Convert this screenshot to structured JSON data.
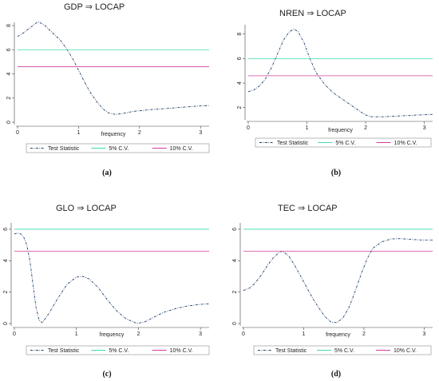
{
  "chart_data": [
    {
      "type": "line",
      "title": "GDP ⇒ LOCAP",
      "xlabel": "frequency",
      "ylabel": "",
      "caption": "(a)",
      "xlim": [
        0,
        3.14
      ],
      "ylim": [
        0,
        8
      ],
      "xticks": [
        "0",
        "1",
        "2",
        "3"
      ],
      "yticks": [
        "0",
        "2",
        "4",
        "6",
        "8"
      ],
      "legend_position": "bottom",
      "series": [
        {
          "name": "Test Statistic",
          "color": "#1f3f6b",
          "dash": "dash-dot",
          "x": [
            0,
            0.1,
            0.2,
            0.3,
            0.35,
            0.45,
            0.55,
            0.7,
            0.8,
            0.9,
            1.0,
            1.1,
            1.2,
            1.3,
            1.4,
            1.5,
            1.6,
            1.7,
            1.8,
            1.9,
            2.0,
            2.2,
            2.4,
            2.6,
            2.8,
            3.0,
            3.14
          ],
          "y": [
            7.1,
            7.4,
            7.8,
            8.2,
            8.3,
            8.0,
            7.5,
            6.8,
            6.1,
            5.3,
            4.3,
            3.3,
            2.4,
            1.7,
            1.1,
            0.75,
            0.65,
            0.7,
            0.8,
            0.9,
            0.95,
            1.05,
            1.12,
            1.2,
            1.28,
            1.35,
            1.38
          ]
        },
        {
          "name": "5% C.V.",
          "color": "#3fd9b2",
          "dash": "solid",
          "x": [
            0,
            3.14
          ],
          "y": [
            6.0,
            6.0
          ]
        },
        {
          "name": "10% C.V.",
          "color": "#d0409a",
          "dash": "solid",
          "x": [
            0,
            3.14
          ],
          "y": [
            4.6,
            4.6
          ]
        }
      ]
    },
    {
      "type": "line",
      "title": "NREN ⇒ LOCAP",
      "xlabel": "frequency",
      "ylabel": "",
      "caption": "(b)",
      "xlim": [
        0,
        3.14
      ],
      "ylim": [
        1.2,
        8.5
      ],
      "xticks": [
        "0",
        "1",
        "2",
        "3"
      ],
      "yticks": [
        "2",
        "4",
        "6",
        "8"
      ],
      "legend_position": "bottom",
      "series": [
        {
          "name": "Test Statistic",
          "color": "#1f3f6b",
          "dash": "dash-dot",
          "x": [
            0,
            0.1,
            0.2,
            0.3,
            0.4,
            0.5,
            0.6,
            0.7,
            0.78,
            0.85,
            0.95,
            1.05,
            1.15,
            1.3,
            1.45,
            1.6,
            1.75,
            1.9,
            2.0,
            2.1,
            2.3,
            2.5,
            2.7,
            2.9,
            3.14
          ],
          "y": [
            3.3,
            3.45,
            3.8,
            4.4,
            5.3,
            6.4,
            7.5,
            8.2,
            8.4,
            8.2,
            7.3,
            6.0,
            4.9,
            3.9,
            3.2,
            2.7,
            2.2,
            1.7,
            1.4,
            1.25,
            1.25,
            1.3,
            1.35,
            1.4,
            1.45
          ]
        },
        {
          "name": "5% C.V.",
          "color": "#3fd9b2",
          "dash": "solid",
          "x": [
            0,
            3.14
          ],
          "y": [
            6.0,
            6.0
          ]
        },
        {
          "name": "10% C.V.",
          "color": "#d0409a",
          "dash": "solid",
          "x": [
            0,
            3.14
          ],
          "y": [
            4.6,
            4.6
          ]
        }
      ]
    },
    {
      "type": "line",
      "title": "GLO ⇒ LOCAP",
      "xlabel": "frequency",
      "ylabel": "",
      "caption": "(c)",
      "xlim": [
        0,
        3.14
      ],
      "ylim": [
        0,
        6.2
      ],
      "xticks": [
        "0",
        "1",
        "2",
        "3"
      ],
      "yticks": [
        "0",
        "2",
        "4",
        "6"
      ],
      "legend_position": "bottom",
      "series": [
        {
          "name": "Test Statistic",
          "color": "#1f3f6b",
          "dash": "dash-dot",
          "x": [
            0,
            0.05,
            0.1,
            0.15,
            0.2,
            0.25,
            0.3,
            0.35,
            0.4,
            0.45,
            0.55,
            0.7,
            0.85,
            1.0,
            1.1,
            1.2,
            1.35,
            1.5,
            1.65,
            1.8,
            1.95,
            2.0,
            2.1,
            2.25,
            2.4,
            2.6,
            2.8,
            3.0,
            3.14
          ],
          "y": [
            5.7,
            5.75,
            5.7,
            5.5,
            5.0,
            4.0,
            2.5,
            1.0,
            0.2,
            0.05,
            0.6,
            1.6,
            2.5,
            2.95,
            3.0,
            2.85,
            2.3,
            1.5,
            0.8,
            0.3,
            0.05,
            0.02,
            0.1,
            0.4,
            0.7,
            0.95,
            1.12,
            1.22,
            1.25
          ]
        },
        {
          "name": "5% C.V.",
          "color": "#3fd9b2",
          "dash": "solid",
          "x": [
            0,
            3.14
          ],
          "y": [
            6.0,
            6.0
          ]
        },
        {
          "name": "10% C.V.",
          "color": "#d0409a",
          "dash": "solid",
          "x": [
            0,
            3.14
          ],
          "y": [
            4.6,
            4.6
          ]
        }
      ]
    },
    {
      "type": "line",
      "title": "TEC ⇒ LOCAP",
      "xlabel": "frequency",
      "ylabel": "",
      "caption": "(d)",
      "xlim": [
        0,
        3.14
      ],
      "ylim": [
        0,
        6.2
      ],
      "xticks": [
        "0",
        "1",
        "2",
        "3"
      ],
      "yticks": [
        "0",
        "2",
        "4",
        "6"
      ],
      "legend_position": "bottom",
      "series": [
        {
          "name": "Test Statistic",
          "color": "#1f3f6b",
          "dash": "dash-dot",
          "x": [
            0,
            0.1,
            0.2,
            0.3,
            0.4,
            0.5,
            0.6,
            0.65,
            0.75,
            0.85,
            0.95,
            1.05,
            1.15,
            1.25,
            1.35,
            1.45,
            1.55,
            1.65,
            1.75,
            1.85,
            1.95,
            2.05,
            2.15,
            2.3,
            2.45,
            2.6,
            2.8,
            3.0,
            3.14
          ],
          "y": [
            2.1,
            2.25,
            2.6,
            3.1,
            3.7,
            4.2,
            4.55,
            4.6,
            4.3,
            3.7,
            3.0,
            2.3,
            1.6,
            1.0,
            0.45,
            0.1,
            0.05,
            0.35,
            1.0,
            2.0,
            3.1,
            4.1,
            4.8,
            5.2,
            5.38,
            5.4,
            5.35,
            5.3,
            5.3
          ]
        },
        {
          "name": "5% C.V.",
          "color": "#3fd9b2",
          "dash": "solid",
          "x": [
            0,
            3.14
          ],
          "y": [
            6.0,
            6.0
          ]
        },
        {
          "name": "10% C.V.",
          "color": "#d0409a",
          "dash": "solid",
          "x": [
            0,
            3.14
          ],
          "y": [
            4.6,
            4.6
          ]
        }
      ]
    }
  ]
}
